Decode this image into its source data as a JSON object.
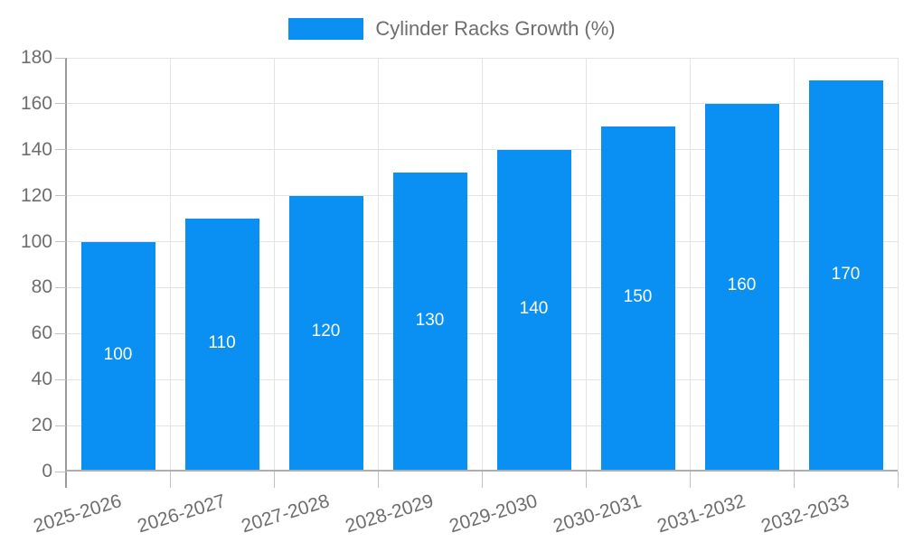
{
  "chart_data": {
    "type": "bar",
    "title": "Cylinder Racks Growth (%)",
    "categories": [
      "2025-2026",
      "2026-2027",
      "2027-2028",
      "2028-2029",
      "2029-2030",
      "2030-2031",
      "2031-2032",
      "2032-2033"
    ],
    "values": [
      100,
      110,
      120,
      130,
      140,
      150,
      160,
      170
    ],
    "series": [
      {
        "name": "Cylinder Racks Growth (%)",
        "values": [
          100,
          110,
          120,
          130,
          140,
          150,
          160,
          170
        ]
      }
    ],
    "xlabel": "",
    "ylabel": "",
    "ylim": [
      0,
      180
    ],
    "yticks": [
      0,
      20,
      40,
      60,
      80,
      100,
      120,
      140,
      160,
      180
    ],
    "grid": true,
    "bar_value_labels": "inside-center",
    "legend_position": "top-center",
    "colors": {
      "bar": "#0a90f2",
      "bar_label": "#ffffff",
      "grid_line": "#e3e3e3",
      "axis_line": "#9a9a9a",
      "baseline": "#aeaeae",
      "tick_mark": "#c2c2c2",
      "text": "#6e6e6e",
      "background": "#ffffff"
    }
  },
  "legend": {
    "label": "Cylinder Racks Growth (%)",
    "swatch_icon": "legend-swatch"
  }
}
